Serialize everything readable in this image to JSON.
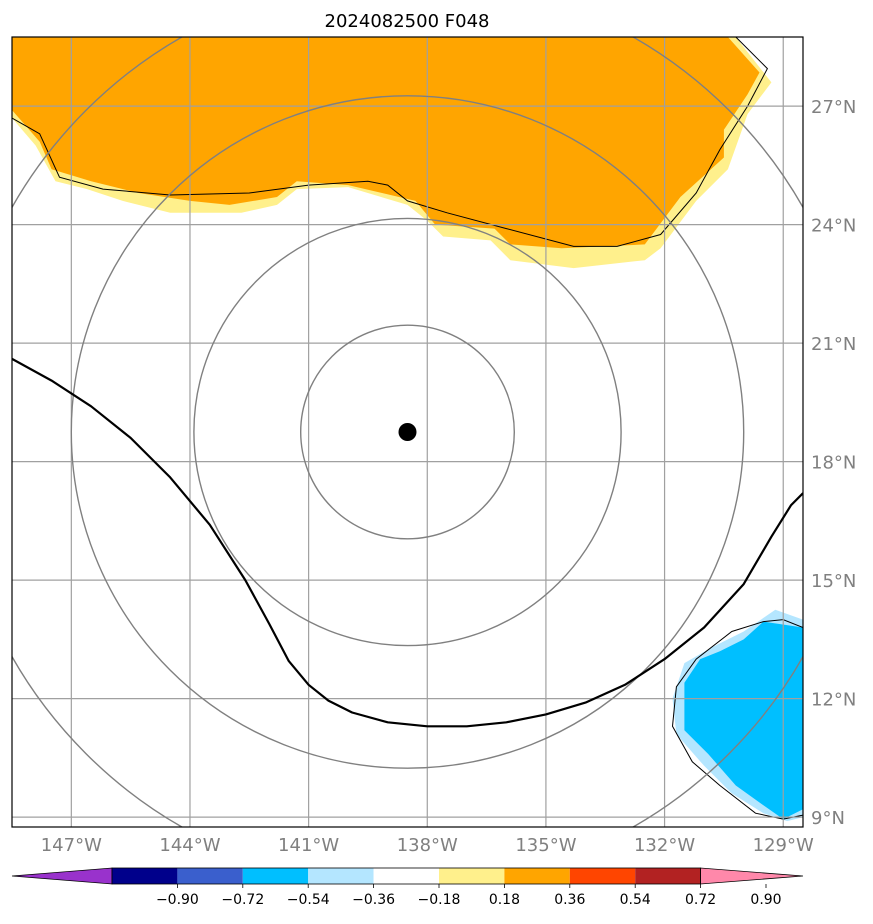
{
  "title": "2024082500 F048",
  "map": {
    "lon_range": [
      -148.5,
      -128.5
    ],
    "lat_range": [
      8.75,
      28.75
    ],
    "grid_color": "#a0a0a0",
    "lon_ticks": [
      {
        "value": -147,
        "label": "147°W"
      },
      {
        "value": -144,
        "label": "144°W"
      },
      {
        "value": -141,
        "label": "141°W"
      },
      {
        "value": -138,
        "label": "138°W"
      },
      {
        "value": -135,
        "label": "135°W"
      },
      {
        "value": -132,
        "label": "132°W"
      },
      {
        "value": -129,
        "label": "129°W"
      }
    ],
    "lat_ticks": [
      {
        "value": 27,
        "label": "27°N"
      },
      {
        "value": 24,
        "label": "24°N"
      },
      {
        "value": 21,
        "label": "21°N"
      },
      {
        "value": 18,
        "label": "18°N"
      },
      {
        "value": 15,
        "label": "15°N"
      },
      {
        "value": 12,
        "label": "12°N"
      },
      {
        "value": 9,
        "label": "9°N"
      }
    ],
    "center": {
      "lon": -138.5,
      "lat": 18.75
    },
    "range_rings": {
      "radii_deg": [
        2.7,
        5.4,
        8.5,
        11.5
      ],
      "color": "#808080"
    },
    "contour_line": [
      [
        -148.5,
        20.6
      ],
      [
        -147.5,
        20.05
      ],
      [
        -146.5,
        19.4
      ],
      [
        -145.5,
        18.6
      ],
      [
        -144.5,
        17.6
      ],
      [
        -143.5,
        16.4
      ],
      [
        -142.6,
        15.0
      ],
      [
        -142.0,
        13.9
      ],
      [
        -141.5,
        12.95
      ],
      [
        -141.0,
        12.35
      ],
      [
        -140.5,
        11.95
      ],
      [
        -139.9,
        11.65
      ],
      [
        -139.0,
        11.4
      ],
      [
        -138.0,
        11.3
      ],
      [
        -137.0,
        11.3
      ],
      [
        -136.0,
        11.4
      ],
      [
        -135.0,
        11.6
      ],
      [
        -134.0,
        11.9
      ],
      [
        -133.0,
        12.35
      ],
      [
        -132.0,
        13.0
      ],
      [
        -131.0,
        13.8
      ],
      [
        -130.0,
        14.9
      ],
      [
        -129.3,
        16.1
      ],
      [
        -128.8,
        16.9
      ],
      [
        -128.5,
        17.2
      ]
    ],
    "shaded_regions": [
      {
        "name": "positive-anomaly-fringe",
        "color": "#fff08c",
        "points": [
          [
            -148.5,
            28.75
          ],
          [
            -130.2,
            28.75
          ],
          [
            -129.3,
            27.6
          ],
          [
            -129.9,
            26.8
          ],
          [
            -130.4,
            25.4
          ],
          [
            -131.2,
            24.6
          ],
          [
            -132.1,
            23.4
          ],
          [
            -132.5,
            23.1
          ],
          [
            -134.3,
            22.9
          ],
          [
            -135.9,
            23.1
          ],
          [
            -136.4,
            23.6
          ],
          [
            -137.6,
            23.7
          ],
          [
            -138.0,
            24.1
          ],
          [
            -138.5,
            24.5
          ],
          [
            -140.0,
            24.95
          ],
          [
            -141.3,
            24.9
          ],
          [
            -141.8,
            24.5
          ],
          [
            -142.7,
            24.3
          ],
          [
            -144.5,
            24.3
          ],
          [
            -145.7,
            24.6
          ],
          [
            -146.6,
            24.9
          ],
          [
            -147.4,
            25.1
          ],
          [
            -147.9,
            26.0
          ],
          [
            -148.5,
            26.7
          ]
        ]
      },
      {
        "name": "positive-anomaly-core",
        "color": "#ffa500",
        "points": [
          [
            -148.5,
            28.75
          ],
          [
            -130.4,
            28.75
          ],
          [
            -129.6,
            27.85
          ],
          [
            -129.9,
            27.3
          ],
          [
            -130.5,
            26.4
          ],
          [
            -130.5,
            25.7
          ],
          [
            -131.6,
            24.7
          ],
          [
            -132.5,
            23.5
          ],
          [
            -134.6,
            23.4
          ],
          [
            -135.9,
            23.5
          ],
          [
            -136.3,
            23.9
          ],
          [
            -137.8,
            24.0
          ],
          [
            -138.3,
            24.6
          ],
          [
            -140.0,
            25.0
          ],
          [
            -141.3,
            25.1
          ],
          [
            -141.8,
            24.7
          ],
          [
            -143.0,
            24.5
          ],
          [
            -144.0,
            24.6
          ],
          [
            -145.3,
            24.8
          ],
          [
            -146.5,
            25.1
          ],
          [
            -147.5,
            25.4
          ],
          [
            -147.8,
            26.1
          ],
          [
            -148.5,
            26.9
          ]
        ]
      },
      {
        "name": "negative-anomaly-fringe",
        "color": "#b4e6ff",
        "points": [
          [
            -129.2,
            14.25
          ],
          [
            -128.5,
            14.0
          ],
          [
            -128.5,
            9.0
          ],
          [
            -128.9,
            8.9
          ],
          [
            -129.5,
            9.1
          ],
          [
            -130.3,
            9.6
          ],
          [
            -131.0,
            10.3
          ],
          [
            -131.7,
            11.1
          ],
          [
            -131.8,
            12.0
          ],
          [
            -131.5,
            12.9
          ],
          [
            -130.8,
            13.3
          ],
          [
            -130.0,
            13.7
          ]
        ]
      },
      {
        "name": "negative-anomaly-core",
        "color": "#00bfff",
        "points": [
          [
            -129.5,
            13.95
          ],
          [
            -128.5,
            13.8
          ],
          [
            -128.5,
            9.2
          ],
          [
            -129.0,
            8.95
          ],
          [
            -129.5,
            9.3
          ],
          [
            -130.2,
            9.8
          ],
          [
            -130.9,
            10.6
          ],
          [
            -131.5,
            11.2
          ],
          [
            -131.5,
            12.4
          ],
          [
            -131.1,
            13.0
          ],
          [
            -130.6,
            13.2
          ],
          [
            -130.0,
            13.5
          ]
        ]
      }
    ],
    "outline_regions": [
      [
        [
          -148.5,
          26.7
        ],
        [
          -147.8,
          26.3
        ],
        [
          -147.3,
          25.2
        ],
        [
          -146.2,
          24.9
        ],
        [
          -144.5,
          24.75
        ],
        [
          -142.5,
          24.8
        ],
        [
          -141.0,
          25.0
        ],
        [
          -139.5,
          25.1
        ],
        [
          -139.0,
          25.0
        ],
        [
          -138.5,
          24.6
        ],
        [
          -137.5,
          24.3
        ],
        [
          -136.0,
          23.9
        ],
        [
          -134.3,
          23.45
        ],
        [
          -133.2,
          23.45
        ],
        [
          -132.1,
          23.75
        ],
        [
          -131.2,
          24.8
        ],
        [
          -130.6,
          25.9
        ],
        [
          -129.9,
          27.0
        ],
        [
          -129.4,
          27.95
        ],
        [
          -130.2,
          28.75
        ]
      ],
      [
        [
          -128.5,
          13.8
        ],
        [
          -129.0,
          14.0
        ],
        [
          -129.5,
          13.95
        ],
        [
          -130.3,
          13.7
        ],
        [
          -131.2,
          13.0
        ],
        [
          -131.7,
          12.3
        ],
        [
          -131.8,
          11.3
        ],
        [
          -131.3,
          10.4
        ],
        [
          -130.6,
          9.8
        ],
        [
          -129.7,
          9.1
        ],
        [
          -129.0,
          8.95
        ],
        [
          -128.5,
          9.05
        ]
      ]
    ]
  },
  "colorbar": {
    "ticks": [
      "−0.90",
      "−0.72",
      "−0.54",
      "−0.36",
      "−0.18",
      "0.18",
      "0.36",
      "0.54",
      "0.72",
      "0.90"
    ],
    "colors": [
      "#9932cc",
      "#00008b",
      "#3a5fcd",
      "#00bfff",
      "#b4e6ff",
      "#ffffff",
      "#fff08c",
      "#ffa500",
      "#ff4500",
      "#b22222",
      "#ff88aa"
    ]
  }
}
